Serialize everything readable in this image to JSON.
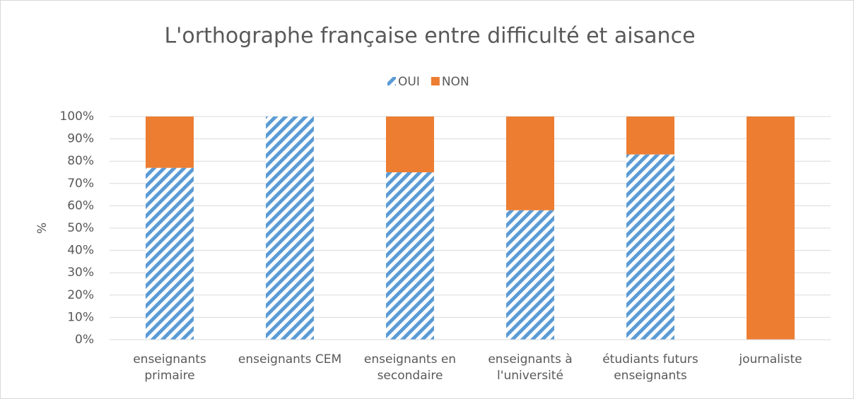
{
  "chart_data": {
    "type": "stacked_bar",
    "title": "L'orthographe française entre difficulté et aisance",
    "ylabel": "%",
    "categories": [
      "enseignants primaire",
      "enseignants CEM",
      "enseignants en secondaire",
      "enseignants à l'université",
      "étudiants futurs enseignants",
      "journaliste"
    ],
    "series": [
      {
        "name": "OUI",
        "color": "#5b9bd5",
        "pattern": "hatch",
        "values": [
          77,
          100,
          75,
          58,
          83,
          0
        ]
      },
      {
        "name": "NON",
        "color": "#ed7d31",
        "values": [
          23,
          0,
          25,
          42,
          17,
          100
        ]
      }
    ],
    "ylim": [
      0,
      100
    ],
    "yticks": [
      {
        "value": 0,
        "label": "0%"
      },
      {
        "value": 10,
        "label": "10%"
      },
      {
        "value": 20,
        "label": "20%"
      },
      {
        "value": 30,
        "label": "30%"
      },
      {
        "value": 40,
        "label": "40%"
      },
      {
        "value": 50,
        "label": "50%"
      },
      {
        "value": 60,
        "label": "60%"
      },
      {
        "value": 70,
        "label": "70%"
      },
      {
        "value": 80,
        "label": "80%"
      },
      {
        "value": 90,
        "label": "90%"
      },
      {
        "value": 100,
        "label": "100%"
      }
    ],
    "grid": true,
    "legend": "top"
  }
}
